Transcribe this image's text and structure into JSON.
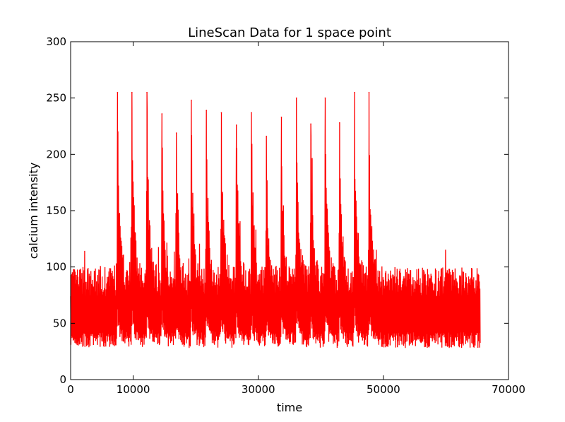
{
  "chart_data": {
    "type": "line",
    "title": "LineScan Data for 1 space point",
    "xlabel": "time",
    "ylabel": "calcium intensity",
    "xlim": [
      0,
      70000
    ],
    "ylim": [
      0,
      300
    ],
    "xticks": [
      0,
      10000,
      30000,
      50000,
      70000
    ],
    "xtick_labels": [
      "0",
      "10000",
      "30000",
      "50000",
      "70000"
    ],
    "yticks": [
      0,
      50,
      100,
      150,
      200,
      250,
      300
    ],
    "ytick_labels": [
      "0",
      "50",
      "100",
      "150",
      "200",
      "250",
      "300"
    ],
    "grid": false,
    "line_color": "#ff0000",
    "x_end": 65500,
    "baseline": {
      "low": 30,
      "high": 92
    },
    "peaks": [
      {
        "x": 7500,
        "y": 255
      },
      {
        "x": 9800,
        "y": 255
      },
      {
        "x": 12200,
        "y": 255
      },
      {
        "x": 14600,
        "y": 236
      },
      {
        "x": 16900,
        "y": 219
      },
      {
        "x": 19300,
        "y": 248
      },
      {
        "x": 21700,
        "y": 239
      },
      {
        "x": 24100,
        "y": 237
      },
      {
        "x": 26500,
        "y": 226
      },
      {
        "x": 28900,
        "y": 237
      },
      {
        "x": 31300,
        "y": 216
      },
      {
        "x": 33700,
        "y": 233
      },
      {
        "x": 36100,
        "y": 250
      },
      {
        "x": 38400,
        "y": 227
      },
      {
        "x": 40700,
        "y": 250
      },
      {
        "x": 43000,
        "y": 228
      },
      {
        "x": 45400,
        "y": 255
      },
      {
        "x": 47700,
        "y": 255
      }
    ]
  }
}
